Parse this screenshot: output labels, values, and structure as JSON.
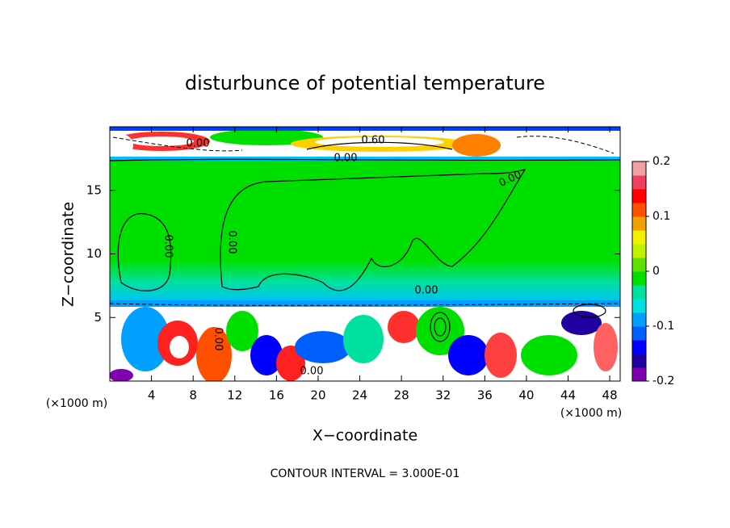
{
  "chart_data": {
    "type": "contour",
    "title": "disturbunce of potential temperature",
    "xlabel": "X−coordinate",
    "ylabel": "Z−coordinate",
    "x_unit": "(×1000 m)",
    "y_unit": "(×1000 m)",
    "xlim": [
      0,
      49
    ],
    "xticks": [
      4,
      8,
      12,
      16,
      20,
      24,
      28,
      32,
      36,
      40,
      44,
      48
    ],
    "ylim": [
      0,
      20
    ],
    "yticks": [
      5,
      10,
      15
    ],
    "colorbar": {
      "lim": [
        -0.2,
        0.2
      ],
      "ticks": [
        -0.2,
        -0.1,
        0,
        0.1,
        0.2
      ],
      "colors": [
        "#8000b0",
        "#2000a0",
        "#0000ff",
        "#0060ff",
        "#00a0ff",
        "#00e0e0",
        "#00e0a0",
        "#00e000",
        "#60e000",
        "#c0f000",
        "#f0f000",
        "#f0a000",
        "#ff5000",
        "#ff0000",
        "#f04060",
        "#f0a0a0"
      ]
    },
    "contour_labels": [
      "0.00",
      "0.60",
      "0.00",
      "0.00",
      "0.00",
      "0.00",
      "0.00",
      "0.00",
      "0.00"
    ],
    "footer": "CONTOUR INTERVAL = 3.000E-01"
  }
}
